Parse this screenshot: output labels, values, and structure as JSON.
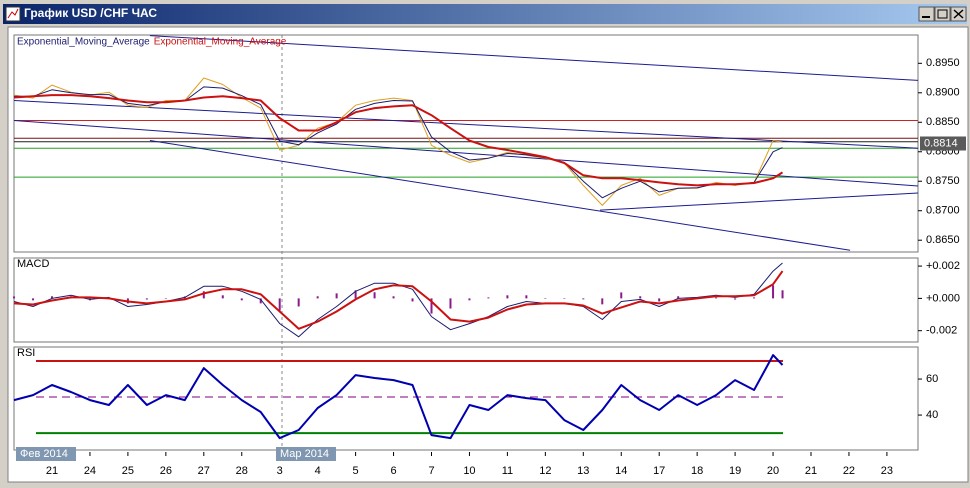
{
  "window": {
    "title": "График USD /CHF ЧАС"
  },
  "chart_data": [
    {
      "type": "line",
      "pane": "price",
      "x": [
        -1,
        -0.5,
        0,
        0.5,
        1,
        1.5,
        2,
        2.5,
        3,
        3.5,
        4,
        4.5,
        5,
        5.5,
        6,
        6.5,
        7,
        7.5,
        8,
        8.5,
        9,
        9.5,
        10,
        10.5,
        11,
        11.5,
        12,
        12.5,
        13,
        13.5,
        14,
        14.5,
        15,
        15.5,
        16,
        16.5,
        17,
        17.5,
        18,
        18.5,
        19,
        19.25
      ],
      "series": [
        {
          "color": "#e0a020",
          "width": 1,
          "values": [
            0.8896,
            0.8891,
            0.8913,
            0.8901,
            0.8896,
            0.8901,
            0.8879,
            0.8875,
            0.8887,
            0.8887,
            0.8925,
            0.8914,
            0.8892,
            0.8874,
            0.8803,
            0.8811,
            0.884,
            0.885,
            0.8879,
            0.8887,
            0.8891,
            0.8887,
            0.8811,
            0.8794,
            0.8782,
            0.8789,
            0.8799,
            0.8794,
            0.8789,
            0.8781,
            0.8743,
            0.8709,
            0.8743,
            0.8755,
            0.8726,
            0.8738,
            0.8738,
            0.8748,
            0.8743,
            0.8748,
            0.8819,
            0.8816
          ]
        },
        {
          "name": "Exponential_Moving_Average",
          "color": "#1c1c70",
          "width": 1,
          "values": [
            0.8894,
            0.8894,
            0.8905,
            0.89,
            0.8897,
            0.8897,
            0.8882,
            0.8878,
            0.8885,
            0.8886,
            0.891,
            0.8908,
            0.8895,
            0.888,
            0.8818,
            0.8812,
            0.8832,
            0.8847,
            0.8872,
            0.8882,
            0.8887,
            0.8886,
            0.8825,
            0.88,
            0.8786,
            0.8789,
            0.8797,
            0.8795,
            0.879,
            0.8782,
            0.875,
            0.8722,
            0.8738,
            0.875,
            0.8732,
            0.8738,
            0.8739,
            0.8746,
            0.8744,
            0.8748,
            0.88,
            0.8807
          ]
        },
        {
          "name": "Exponential_Moving_Average",
          "color": "#cc1111",
          "width": 2,
          "values": [
            0.8892,
            0.8894,
            0.8896,
            0.8896,
            0.8894,
            0.8891,
            0.8887,
            0.8884,
            0.8884,
            0.8887,
            0.8892,
            0.8894,
            0.8891,
            0.8887,
            0.8857,
            0.8836,
            0.8836,
            0.885,
            0.8867,
            0.8874,
            0.8877,
            0.8879,
            0.8862,
            0.884,
            0.8819,
            0.8808,
            0.8803,
            0.8797,
            0.8791,
            0.8781,
            0.876,
            0.8755,
            0.8755,
            0.8752,
            0.8748,
            0.8745,
            0.8743,
            0.8745,
            0.8745,
            0.8747,
            0.8755,
            0.8765
          ]
        }
      ],
      "trend_lines": [
        {
          "color": "#1c1c90",
          "x": [
            2.58,
            22.82
          ],
          "values": [
            0.8997,
            0.8921
          ]
        },
        {
          "color": "#1c1c90",
          "x": [
            -1,
            22.82
          ],
          "values": [
            0.8887,
            0.8806
          ]
        },
        {
          "color": "#1c1c90",
          "x": [
            -1,
            22.82
          ],
          "values": [
            0.8853,
            0.8742
          ]
        },
        {
          "color": "#1c1c90",
          "x": [
            2.58,
            21.03
          ],
          "values": [
            0.8819,
            0.8633
          ]
        },
        {
          "color": "#1c1c90",
          "x": [
            14.44,
            22.82
          ],
          "values": [
            0.8701,
            0.873
          ]
        }
      ],
      "levels": [
        {
          "value": 0.8853,
          "color": "#cc2222"
        },
        {
          "value": 0.8823,
          "color": "#7a1010"
        },
        {
          "value": 0.8817,
          "color": "#202020"
        },
        {
          "value": 0.8806,
          "color": "#20a020"
        },
        {
          "value": 0.8757,
          "color": "#20a020"
        }
      ],
      "last_price": 0.8814,
      "ylim": [
        0.863,
        0.8998
      ],
      "yticks": [
        {
          "value": 0.895,
          "label": "0.8950"
        },
        {
          "value": 0.89,
          "label": "0.8900"
        },
        {
          "value": 0.885,
          "label": "0.8850"
        },
        {
          "value": 0.88,
          "label": "0.8800"
        },
        {
          "value": 0.875,
          "label": "0.8750"
        },
        {
          "value": 0.87,
          "label": "0.8700"
        },
        {
          "value": 0.865,
          "label": "0.8650"
        }
      ]
    },
    {
      "type": "line",
      "pane": "macd",
      "title": "MACD",
      "x": [
        -1,
        -0.5,
        0,
        0.5,
        1,
        1.5,
        2,
        2.5,
        3,
        3.5,
        4,
        4.5,
        5,
        5.5,
        6,
        6.5,
        7,
        7.5,
        8,
        8.5,
        9,
        9.5,
        10,
        10.5,
        11,
        11.5,
        12,
        12.5,
        13,
        13.5,
        14,
        14.5,
        15,
        15.5,
        16,
        16.5,
        17,
        17.5,
        18,
        18.5,
        19,
        19.25
      ],
      "series": [
        {
          "type": "bar",
          "color": "#8b1a8b",
          "values": [
            0.00012,
            -0.00012,
            0.00013,
            0.00013,
            -0.00012,
            6e-05,
            -0.00031,
            -7e-05,
            0,
            0.00012,
            0.00044,
            0.00019,
            -0.00012,
            -0.00031,
            -0.00075,
            -0.0005,
            0.00013,
            0.00031,
            0.0005,
            0.00038,
            0.00013,
            -0.00019,
            -0.00094,
            -0.00063,
            -0.00012,
            6e-05,
            0.00019,
            0.00019,
            0,
            0,
            -6e-05,
            -0.00037,
            0.00037,
            0.00013,
            -0.00019,
            0.00013,
            6e-05,
            6e-05,
            -7e-05,
            6e-05,
            0.00081,
            0.0005
          ]
        },
        {
          "color": "#1c1c70",
          "width": 1,
          "values": [
            -0.00019,
            -0.0005,
            0,
            0.00019,
            -6e-05,
            6e-05,
            -0.0005,
            -0.00038,
            -0.00019,
            6e-05,
            0.00075,
            0.00075,
            0.00044,
            -6e-05,
            -0.00156,
            -0.00238,
            -0.00131,
            -0.0005,
            0.00044,
            0.00094,
            0.00094,
            0.00056,
            -0.00113,
            -0.00194,
            -0.00156,
            -0.00113,
            -0.0005,
            -0.00019,
            -0.00031,
            -0.00031,
            -0.0005,
            -0.00131,
            -0.00019,
            -6e-05,
            -0.0005,
            0,
            6e-05,
            0.00019,
            6e-05,
            0.00025,
            0.00169,
            0.00219
          ]
        },
        {
          "color": "#cc1111",
          "width": 2,
          "values": [
            -0.00031,
            -0.00038,
            -0.00013,
            6e-05,
            6e-05,
            0,
            -0.00019,
            -0.00031,
            -0.00019,
            -6e-05,
            0.00031,
            0.00056,
            0.00056,
            0.00025,
            -0.00081,
            -0.00188,
            -0.00144,
            -0.00081,
            -6e-05,
            0.00056,
            0.00081,
            0.00075,
            -0.00019,
            -0.00131,
            -0.00144,
            -0.00119,
            -0.00069,
            -0.00038,
            -0.00031,
            -0.00031,
            -0.00044,
            -0.00094,
            -0.00056,
            -0.00019,
            -0.00031,
            -0.00013,
            0,
            0.00013,
            0.00013,
            0.00019,
            0.00088,
            0.00169
          ]
        }
      ],
      "ylim": [
        -0.0027,
        0.0025
      ],
      "yticks": [
        {
          "value": 0.002,
          "label": "+0.002"
        },
        {
          "value": 0,
          "label": "+0.000"
        },
        {
          "value": -0.002,
          "label": "-0.002"
        }
      ]
    },
    {
      "type": "line",
      "pane": "rsi",
      "title": "RSI",
      "x": [
        -1,
        -0.5,
        0,
        0.5,
        1,
        1.5,
        2,
        2.5,
        3,
        3.5,
        4,
        4.5,
        5,
        5.5,
        6,
        6.5,
        7,
        7.5,
        8,
        8.5,
        9,
        9.5,
        10,
        10.5,
        11,
        11.5,
        12,
        12.5,
        13,
        13.5,
        14,
        14.5,
        15,
        15.5,
        16,
        16.5,
        17,
        17.5,
        18,
        18.5,
        19,
        19.25
      ],
      "series": [
        {
          "color": "#0000b0",
          "width": 2,
          "values": [
            48.3,
            51.1,
            56.7,
            52.8,
            48.3,
            45.6,
            56.7,
            45.6,
            51.1,
            48.3,
            66.1,
            56.7,
            48.3,
            41.7,
            27.2,
            31.7,
            43.9,
            51.1,
            62.2,
            60.6,
            59.4,
            56.7,
            28.9,
            27.2,
            45.6,
            42.8,
            51.1,
            49.4,
            48.3,
            37.2,
            31.7,
            42.8,
            56.7,
            48.3,
            42.8,
            51.1,
            45.6,
            51.1,
            59.4,
            53.9,
            73.3,
            67.8
          ]
        }
      ],
      "levels": [
        {
          "value": 70,
          "color": "#cc1111"
        },
        {
          "value": 50,
          "color": "#800080",
          "dash": true
        },
        {
          "value": 30,
          "color": "#008000"
        }
      ],
      "ylim": [
        20.6,
        77.8
      ],
      "yticks": [
        60,
        40
      ],
      "xticks": [
        {
          "value": 0,
          "label": "21"
        },
        {
          "value": 1,
          "label": "24"
        },
        {
          "value": 2,
          "label": "25"
        },
        {
          "value": 3,
          "label": "26"
        },
        {
          "value": 4,
          "label": "27"
        },
        {
          "value": 5,
          "label": "28"
        },
        {
          "value": 6,
          "label": "3"
        },
        {
          "value": 7,
          "label": "4"
        },
        {
          "value": 8,
          "label": "5"
        },
        {
          "value": 9,
          "label": "6"
        },
        {
          "value": 10,
          "label": "7"
        },
        {
          "value": 11,
          "label": "10"
        },
        {
          "value": 12,
          "label": "11"
        },
        {
          "value": 13,
          "label": "12"
        },
        {
          "value": 14,
          "label": "13"
        },
        {
          "value": 15,
          "label": "14"
        },
        {
          "value": 16,
          "label": "17"
        },
        {
          "value": 17,
          "label": "18"
        },
        {
          "value": 18,
          "label": "19"
        },
        {
          "value": 19,
          "label": "20"
        },
        {
          "value": 20,
          "label": "21"
        },
        {
          "value": 21,
          "label": "22"
        },
        {
          "value": 22,
          "label": "23"
        }
      ],
      "period_labels": [
        "Фев 2014",
        "Мар 2014"
      ]
    }
  ]
}
